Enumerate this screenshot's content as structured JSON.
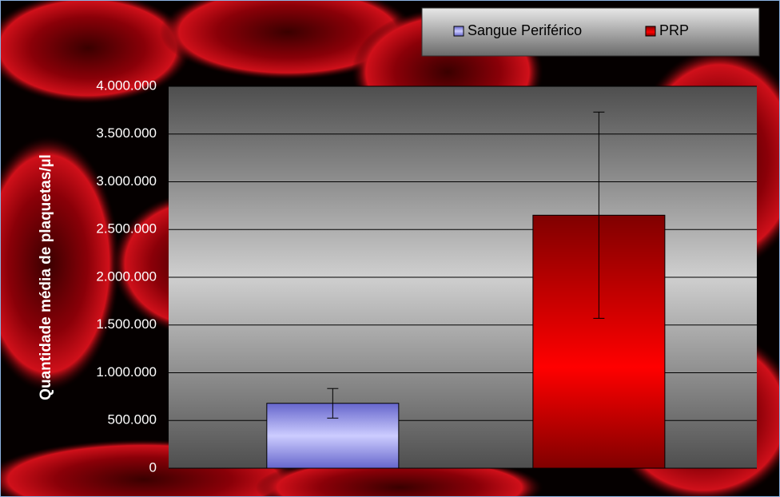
{
  "chart_data": {
    "type": "bar",
    "y_label": "Quantidade média de plaquetas/µl",
    "categories": [
      null
    ],
    "series": [
      {
        "name": "Sangue Periférico",
        "color": "#9999ff",
        "values": [
          680000
        ],
        "errors": [
          155000
        ]
      },
      {
        "name": "PRP",
        "color": "#ff0000",
        "values": [
          2650000
        ],
        "errors": [
          1080000
        ]
      }
    ],
    "ylim": [
      0,
      4000000
    ],
    "yticks": [
      0,
      {
        "value": 500000,
        "label": "500.000"
      },
      {
        "value": 1000000,
        "label": "1.000.000"
      },
      {
        "value": 1500000,
        "label": "1.500.000"
      },
      {
        "value": 2000000,
        "label": "2.000.000"
      },
      {
        "value": 2500000,
        "label": "2.500.000"
      },
      {
        "value": 3000000,
        "label": "3.000.000"
      },
      {
        "value": 3500000,
        "label": "3.500.000"
      },
      {
        "value": 4000000,
        "label": "4.000.000"
      }
    ],
    "grid": true,
    "legend": "top-right"
  }
}
